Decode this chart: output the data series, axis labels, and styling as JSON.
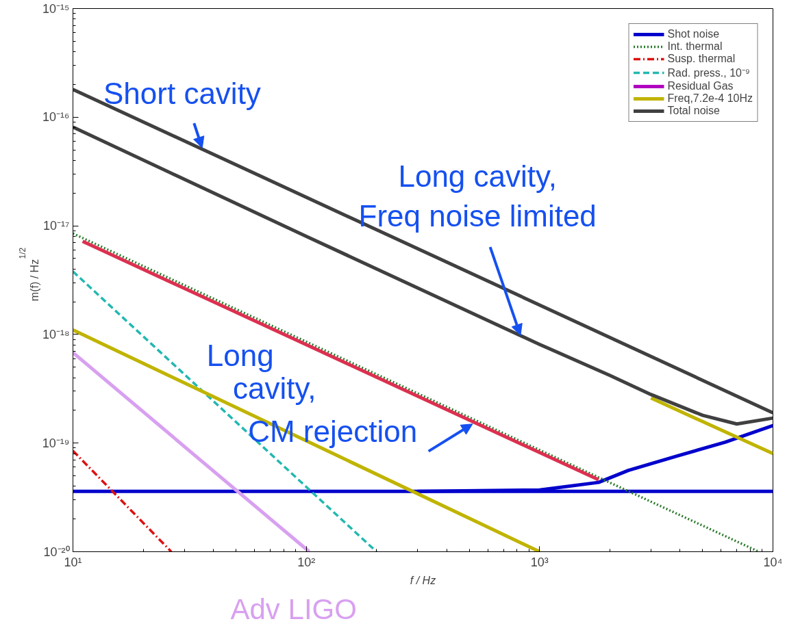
{
  "chart_data": {
    "type": "line",
    "xlabel": "f / Hz",
    "ylabel": "m(f) / Hz$^{1/2}$",
    "log": "xy",
    "grid": false,
    "legend": "top right",
    "xlim": [
      10,
      10000
    ],
    "ylim": [
      1e-20,
      1e-15
    ],
    "xticks": [
      {
        "value": 10,
        "label": "10¹"
      },
      {
        "value": 100,
        "label": "10²"
      },
      {
        "value": 1000,
        "label": "10³"
      },
      {
        "value": 10000,
        "label": "10⁴"
      }
    ],
    "yticks": [
      {
        "value": 1e-20,
        "label": "10⁻²⁰"
      },
      {
        "value": 1e-19,
        "label": "10⁻¹⁹"
      },
      {
        "value": 1e-18,
        "label": "10⁻¹⁸"
      },
      {
        "value": 1e-17,
        "label": "10⁻¹⁷"
      },
      {
        "value": 1e-16,
        "label": "10⁻¹⁶"
      },
      {
        "value": 1e-15,
        "label": "10⁻¹⁵"
      }
    ],
    "series": [
      {
        "name": "Shot noise",
        "color": "#0000cc",
        "line_style": "solid",
        "x": [
          10,
          10000
        ],
        "values": [
          3.6e-20,
          3.6e-20
        ]
      },
      {
        "color": "#0000cc",
        "line_style": "solid",
        "x": [
          300,
          1000,
          1790,
          2400,
          3880,
          6240,
          10000
        ],
        "values": [
          3.6e-20,
          3.7e-20,
          4.35e-20,
          5.6e-20,
          7.6e-20,
          1.02e-19,
          1.45e-19
        ]
      },
      {
        "name": "Int. thermal",
        "color": "#2a7a2a",
        "line_style": "dotted",
        "x": [
          10,
          8700
        ],
        "values": [
          8.5e-18,
          1e-20
        ]
      },
      {
        "name": "Susp. thermal",
        "color": "#dd1111",
        "line_style": "dashdot",
        "x": [
          10,
          26.4
        ],
        "values": [
          8.5e-20,
          1e-20
        ]
      },
      {
        "name": "Rad. press., 10⁻⁹",
        "color": "#22b8b0",
        "line_style": "dashed",
        "x": [
          10,
          200
        ],
        "values": [
          3.8e-18,
          1e-20
        ]
      },
      {
        "name": "Residual Gas",
        "color": "#b000c0",
        "line_style": "solid",
        "values": [
          null
        ]
      },
      {
        "name": "Freq,7.2e-4 10Hz",
        "color": "#c0b400",
        "line_style": "solid",
        "x": [
          10,
          1000
        ],
        "values": [
          1.1e-18,
          1e-20
        ]
      },
      {
        "color": "#c0b400",
        "line_style": "solid",
        "x": [
          3000,
          10000
        ],
        "values": [
          2.6e-19,
          8e-20
        ]
      },
      {
        "name": "Total noise",
        "color": "#404040",
        "line_style": "solid",
        "x": [
          10,
          10000
        ],
        "values": [
          1.8e-16,
          1.9e-19
        ]
      },
      {
        "color": "#404040",
        "line_style": "solid",
        "x": [
          10,
          100,
          1000,
          2000,
          3000,
          5000,
          7000,
          10000
        ],
        "values": [
          8.1e-17,
          8e-18,
          8.1e-19,
          4.2e-19,
          2.8e-19,
          1.8e-19,
          1.5e-19,
          1.7e-19
        ]
      },
      {
        "color": "#dc3050",
        "line_style": "solid",
        "x": [
          11,
          1790
        ],
        "values": [
          7.2e-18,
          4.6e-20
        ]
      },
      {
        "color": "#d8a0f0",
        "line_style": "solid",
        "x": [
          10,
          103
        ],
        "values": [
          6.8e-19,
          1e-20
        ]
      }
    ],
    "annotations": [
      {
        "text": "Short cavity",
        "x": 35.8,
        "y": 5.2e-17
      },
      {
        "text": "Long cavity,\nFreq noise limited",
        "x": 828,
        "y": 9.8e-19
      },
      {
        "text": "Long\ncavity,\nCM rejection",
        "x": 516,
        "y": 1.5e-19
      },
      "Adv LIGO"
    ]
  }
}
